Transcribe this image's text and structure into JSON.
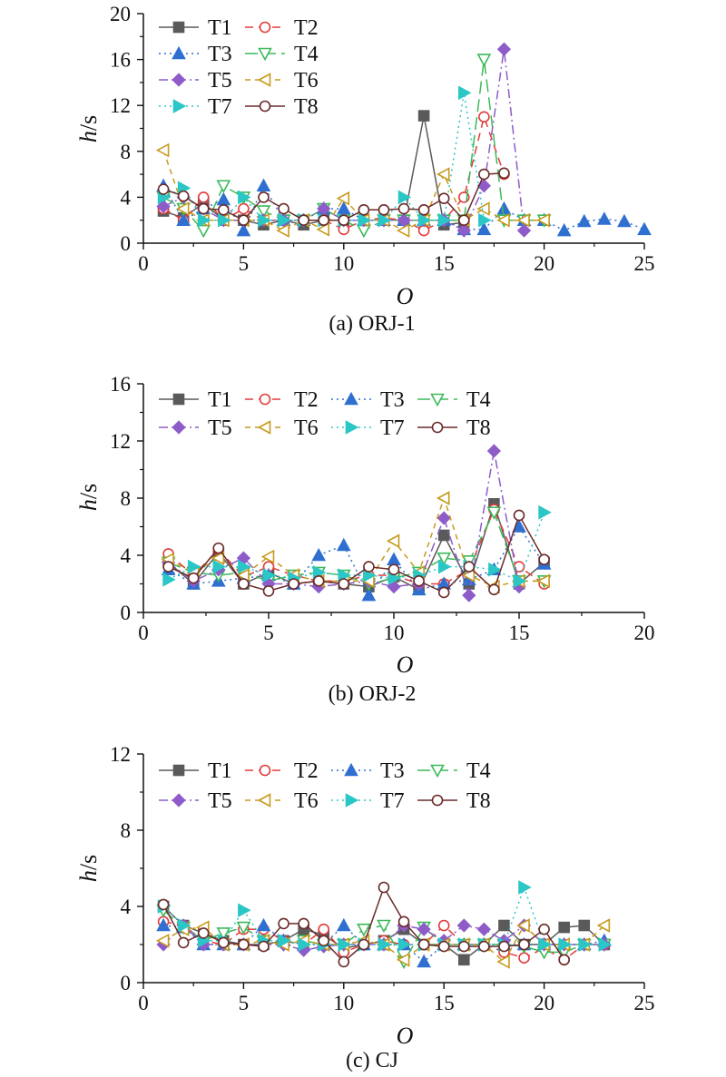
{
  "chart_data": [
    {
      "type": "line",
      "caption": "(a) ORJ-1",
      "xlabel": "O",
      "ylabel_var": "h",
      "ylabel_unit": "/s",
      "xlim": [
        0,
        25
      ],
      "ylim": [
        0,
        20
      ],
      "xticks": [
        0,
        5,
        10,
        15,
        20,
        25
      ],
      "yticks": [
        0,
        4,
        8,
        12,
        16,
        20
      ],
      "legend_position": "top-left",
      "series": [
        {
          "name": "T1",
          "x": [
            1,
            2,
            3,
            4,
            5,
            6,
            7,
            8,
            9,
            10,
            11,
            12,
            13,
            14,
            15,
            16
          ],
          "y": [
            2.8,
            2.2,
            3.5,
            2.0,
            2.0,
            1.6,
            2.0,
            1.6,
            2.0,
            2.0,
            2.0,
            2.0,
            2.0,
            11.1,
            1.6,
            1.8
          ]
        },
        {
          "name": "T2",
          "x": [
            1,
            2,
            3,
            4,
            5,
            6,
            7,
            8,
            9,
            10,
            11,
            12,
            13,
            14,
            15,
            16,
            17,
            18
          ],
          "y": [
            3.0,
            2.0,
            4.0,
            2.0,
            3.0,
            2.0,
            2.0,
            2.0,
            2.0,
            1.2,
            2.0,
            2.2,
            2.0,
            1.1,
            2.0,
            4.0,
            11.0,
            6.0
          ]
        },
        {
          "name": "T3",
          "x": [
            1,
            2,
            3,
            4,
            5,
            6,
            7,
            8,
            9,
            10,
            11,
            12,
            13,
            14,
            15,
            16,
            17,
            18,
            19,
            20,
            21,
            22,
            23,
            24,
            25
          ],
          "y": [
            5.0,
            2.0,
            3.0,
            3.8,
            1.1,
            5.0,
            2.0,
            2.0,
            3.0,
            3.0,
            2.0,
            2.0,
            2.0,
            2.0,
            2.0,
            1.2,
            1.2,
            3.0,
            2.0,
            2.0,
            1.1,
            1.9,
            2.1,
            1.9,
            1.2
          ]
        },
        {
          "name": "T4",
          "x": [
            1,
            2,
            3,
            4,
            5,
            6,
            7,
            8,
            9,
            10,
            11,
            12,
            13,
            14,
            15,
            16,
            17,
            18,
            19,
            20
          ],
          "y": [
            4.0,
            3.0,
            1.1,
            5.0,
            4.0,
            2.8,
            2.0,
            2.0,
            3.0,
            2.0,
            1.1,
            2.0,
            2.0,
            2.0,
            2.0,
            2.0,
            16.0,
            2.0,
            2.0,
            2.0
          ]
        },
        {
          "name": "T5",
          "x": [
            1,
            2,
            3,
            4,
            5,
            6,
            7,
            8,
            9,
            10,
            11,
            12,
            13,
            14,
            15,
            16,
            17,
            18,
            19
          ],
          "y": [
            3.2,
            4.0,
            3.0,
            2.0,
            2.0,
            2.0,
            2.0,
            2.0,
            3.0,
            2.0,
            2.0,
            2.0,
            2.0,
            2.0,
            2.0,
            1.1,
            5.0,
            16.9,
            1.1
          ]
        },
        {
          "name": "T6",
          "x": [
            1,
            2,
            3,
            4,
            5,
            6,
            7,
            8,
            9,
            10,
            11,
            12,
            13,
            14,
            15,
            16,
            17,
            18,
            19,
            20
          ],
          "y": [
            8.1,
            3.0,
            2.0,
            2.0,
            2.0,
            2.0,
            1.1,
            2.0,
            1.2,
            3.9,
            2.0,
            2.0,
            1.1,
            2.0,
            6.0,
            2.0,
            3.0,
            2.0,
            2.0,
            2.0
          ]
        },
        {
          "name": "T7",
          "x": [
            1,
            2,
            3,
            4,
            5,
            6,
            7,
            8,
            9,
            10,
            11,
            12,
            13,
            14,
            15,
            16,
            17
          ],
          "y": [
            4.0,
            4.8,
            2.0,
            2.0,
            4.0,
            2.0,
            2.0,
            2.0,
            2.0,
            2.0,
            2.0,
            2.0,
            4.0,
            2.0,
            2.0,
            13.1,
            2.0
          ]
        },
        {
          "name": "T8",
          "x": [
            1,
            2,
            3,
            4,
            5,
            6,
            7,
            8,
            9,
            10,
            11,
            12,
            13,
            14,
            15,
            16,
            17,
            18
          ],
          "y": [
            4.7,
            4.1,
            3.0,
            2.9,
            2.0,
            4.0,
            3.0,
            2.0,
            2.0,
            2.0,
            2.9,
            2.9,
            3.0,
            2.9,
            3.9,
            2.0,
            6.0,
            6.1
          ]
        }
      ]
    },
    {
      "type": "line",
      "caption": "(b) ORJ-2",
      "xlabel": "O",
      "ylabel_var": "h",
      "ylabel_unit": "/s",
      "xlim": [
        0,
        20
      ],
      "ylim": [
        0,
        16
      ],
      "xticks": [
        0,
        5,
        10,
        15,
        20
      ],
      "yticks": [
        0,
        4,
        8,
        12,
        16
      ],
      "legend_position": "top",
      "series": [
        {
          "name": "T1",
          "x": [
            1,
            2,
            3,
            4,
            5,
            6,
            7,
            8,
            9,
            10,
            11,
            12,
            13,
            14,
            15,
            16
          ],
          "y": [
            3.5,
            2.0,
            4.2,
            2.0,
            2.8,
            2.0,
            2.2,
            2.0,
            1.8,
            2.5,
            1.6,
            5.4,
            2.0,
            7.6,
            2.0,
            3.5
          ]
        },
        {
          "name": "T2",
          "x": [
            1,
            2,
            3,
            4,
            5,
            6,
            7,
            8,
            9,
            10,
            11,
            12,
            13,
            14,
            15,
            16
          ],
          "y": [
            4.1,
            2.6,
            4.4,
            2.5,
            3.2,
            2.6,
            2.2,
            2.2,
            2.6,
            2.6,
            2.0,
            2.0,
            3.0,
            7.2,
            3.2,
            2.0
          ]
        },
        {
          "name": "T3",
          "x": [
            1,
            2,
            3,
            4,
            5,
            6,
            7,
            8,
            9,
            10,
            11,
            12,
            13,
            14,
            15,
            16
          ],
          "y": [
            3.0,
            2.0,
            2.2,
            2.4,
            2.6,
            2.0,
            4.0,
            4.7,
            1.2,
            3.7,
            1.6,
            2.0,
            2.3,
            3.0,
            6.0,
            3.4
          ]
        },
        {
          "name": "T4",
          "x": [
            1,
            2,
            3,
            4,
            5,
            6,
            7,
            8,
            9,
            10,
            11,
            12,
            13,
            14,
            15,
            16
          ],
          "y": [
            3.5,
            2.8,
            2.6,
            2.8,
            2.2,
            2.6,
            2.8,
            2.6,
            2.0,
            2.4,
            2.8,
            3.8,
            3.6,
            7.0,
            2.2,
            2.2
          ]
        },
        {
          "name": "T5",
          "x": [
            1,
            2,
            3,
            4,
            5,
            6,
            7,
            8,
            9,
            10,
            11,
            12,
            13,
            14,
            15
          ],
          "y": [
            3.5,
            2.2,
            3.0,
            3.8,
            2.0,
            2.0,
            1.8,
            2.0,
            2.2,
            1.8,
            2.0,
            6.6,
            1.2,
            11.3,
            1.8
          ]
        },
        {
          "name": "T6",
          "x": [
            1,
            2,
            3,
            4,
            5,
            6,
            7,
            8,
            9,
            10,
            11,
            12,
            13,
            14,
            15,
            16
          ],
          "y": [
            3.7,
            2.8,
            3.8,
            2.6,
            3.9,
            2.6,
            2.2,
            2.2,
            2.2,
            5.0,
            2.8,
            8.0,
            2.6,
            1.8,
            2.2,
            2.2
          ]
        },
        {
          "name": "T7",
          "x": [
            1,
            2,
            3,
            4,
            5,
            6,
            7,
            8,
            9,
            10,
            11,
            12,
            13,
            14,
            15,
            16
          ],
          "y": [
            2.3,
            3.2,
            3.2,
            3.2,
            2.6,
            2.4,
            2.8,
            2.6,
            2.6,
            2.4,
            2.6,
            3.2,
            3.2,
            3.0,
            2.2,
            7.0
          ]
        },
        {
          "name": "T8",
          "x": [
            1,
            2,
            3,
            4,
            5,
            6,
            7,
            8,
            9,
            10,
            11,
            12,
            13,
            14,
            15,
            16
          ],
          "y": [
            3.2,
            2.4,
            4.5,
            2.0,
            1.5,
            2.0,
            2.2,
            2.0,
            3.2,
            3.0,
            2.2,
            1.4,
            3.2,
            1.6,
            6.8,
            3.7
          ]
        }
      ]
    },
    {
      "type": "line",
      "caption": "(c) CJ",
      "xlabel": "O",
      "ylabel_var": "h",
      "ylabel_unit": "/s",
      "xlim": [
        0,
        25
      ],
      "ylim": [
        0,
        12
      ],
      "xticks": [
        0,
        5,
        10,
        15,
        20,
        25
      ],
      "yticks": [
        0,
        4,
        8,
        12
      ],
      "legend_position": "top",
      "series": [
        {
          "name": "T1",
          "x": [
            1,
            2,
            3,
            4,
            5,
            6,
            7,
            8,
            9,
            10,
            11,
            12,
            13,
            14,
            15,
            16,
            17,
            18,
            19,
            20,
            21,
            22,
            23
          ],
          "y": [
            4.0,
            3.0,
            2.6,
            2.2,
            2.0,
            2.0,
            2.2,
            2.8,
            2.5,
            1.8,
            2.0,
            2.2,
            2.8,
            2.0,
            2.0,
            1.2,
            2.0,
            3.0,
            2.0,
            2.0,
            2.9,
            3.0,
            2.0
          ]
        },
        {
          "name": "T2",
          "x": [
            1,
            2,
            3,
            4,
            5,
            6,
            7,
            8,
            9,
            10,
            11,
            12,
            13,
            14,
            15,
            16,
            17,
            18,
            19,
            20,
            21,
            22,
            23
          ],
          "y": [
            3.2,
            3.0,
            2.2,
            2.0,
            2.8,
            2.8,
            2.2,
            2.0,
            2.8,
            1.6,
            2.0,
            2.2,
            2.0,
            2.0,
            3.0,
            2.0,
            2.0,
            1.6,
            1.3,
            1.8,
            1.2,
            2.0,
            2.0
          ]
        },
        {
          "name": "T3",
          "x": [
            1,
            2,
            3,
            4,
            5,
            6,
            7,
            8,
            9,
            10,
            11,
            12,
            13,
            14,
            15,
            16,
            17,
            18,
            19,
            20,
            21,
            22,
            23
          ],
          "y": [
            3.0,
            2.9,
            2.0,
            2.0,
            2.0,
            3.0,
            2.2,
            2.0,
            2.0,
            3.0,
            2.0,
            2.0,
            2.0,
            1.1,
            2.0,
            2.0,
            2.0,
            2.0,
            2.0,
            2.0,
            2.0,
            2.0,
            2.2
          ]
        },
        {
          "name": "T4",
          "x": [
            1,
            2,
            3,
            4,
            5,
            6,
            7,
            8,
            9,
            10,
            11,
            12,
            13,
            14,
            15,
            16,
            17,
            18,
            19,
            20,
            21,
            22,
            23
          ],
          "y": [
            3.8,
            2.9,
            2.2,
            2.6,
            2.9,
            2.2,
            2.0,
            2.2,
            2.0,
            2.0,
            2.8,
            3.0,
            1.1,
            2.9,
            2.0,
            2.0,
            2.0,
            2.0,
            1.9,
            1.6,
            1.6,
            2.0,
            2.0
          ]
        },
        {
          "name": "T5",
          "x": [
            1,
            2,
            3,
            4,
            5,
            6,
            7,
            8,
            9,
            10,
            11,
            12,
            13,
            14,
            15,
            16,
            17,
            18,
            19,
            20,
            21,
            22,
            23
          ],
          "y": [
            2.0,
            3.0,
            2.0,
            2.0,
            2.0,
            2.0,
            2.0,
            1.7,
            1.9,
            2.0,
            2.0,
            2.0,
            3.0,
            2.8,
            2.2,
            3.0,
            2.8,
            2.2,
            3.0,
            2.0,
            2.0,
            2.0,
            2.0
          ]
        },
        {
          "name": "T6",
          "x": [
            1,
            2,
            3,
            4,
            5,
            6,
            7,
            8,
            9,
            10,
            11,
            12,
            13,
            14,
            15,
            16,
            17,
            18,
            19,
            20,
            21,
            22,
            23
          ],
          "y": [
            2.2,
            2.8,
            2.9,
            2.0,
            2.0,
            2.2,
            2.0,
            2.2,
            2.0,
            2.0,
            2.2,
            2.0,
            1.2,
            2.0,
            2.0,
            2.0,
            2.0,
            1.1,
            3.0,
            2.0,
            2.0,
            2.0,
            3.0
          ]
        },
        {
          "name": "T7",
          "x": [
            1,
            2,
            3,
            4,
            5,
            6,
            7,
            8,
            9,
            10,
            11,
            12,
            13,
            14,
            15,
            16,
            17,
            18,
            19,
            20,
            21,
            22,
            23
          ],
          "y": [
            4.0,
            3.0,
            2.2,
            2.2,
            3.8,
            2.2,
            2.2,
            2.0,
            2.0,
            2.0,
            2.0,
            2.0,
            2.0,
            2.0,
            2.0,
            2.0,
            2.0,
            2.0,
            5.0,
            2.0,
            2.0,
            2.0,
            2.0
          ]
        },
        {
          "name": "T8",
          "x": [
            1,
            2,
            3,
            4,
            5,
            6,
            7,
            8,
            9,
            10,
            11,
            12,
            13,
            14,
            15,
            16,
            17,
            18,
            19,
            20,
            21
          ],
          "y": [
            4.1,
            2.1,
            2.6,
            2.1,
            2.0,
            1.9,
            3.1,
            3.1,
            2.2,
            1.1,
            2.0,
            5.0,
            3.2,
            2.0,
            1.9,
            1.9,
            1.9,
            1.9,
            2.0,
            2.8,
            1.2
          ]
        }
      ]
    }
  ],
  "series_styles": {
    "T1": {
      "color": "#5a5a5a",
      "marker": "square-filled",
      "dash": "solid"
    },
    "T2": {
      "color": "#e23b3b",
      "marker": "circle-open",
      "dash": "dashed"
    },
    "T3": {
      "color": "#2f6fd0",
      "marker": "triangle-up-filled",
      "dash": "dotted"
    },
    "T4": {
      "color": "#3cb95a",
      "marker": "triangle-down-open",
      "dash": "long-dash"
    },
    "T5": {
      "color": "#8e5cc8",
      "marker": "diamond-filled",
      "dash": "dash-dot"
    },
    "T6": {
      "color": "#c79a1c",
      "marker": "triangle-left-open",
      "dash": "short-dash"
    },
    "T7": {
      "color": "#2bc6c6",
      "marker": "triangle-right-filled",
      "dash": "dotted"
    },
    "T8": {
      "color": "#6b2a2a",
      "marker": "circle-open",
      "dash": "solid"
    }
  }
}
